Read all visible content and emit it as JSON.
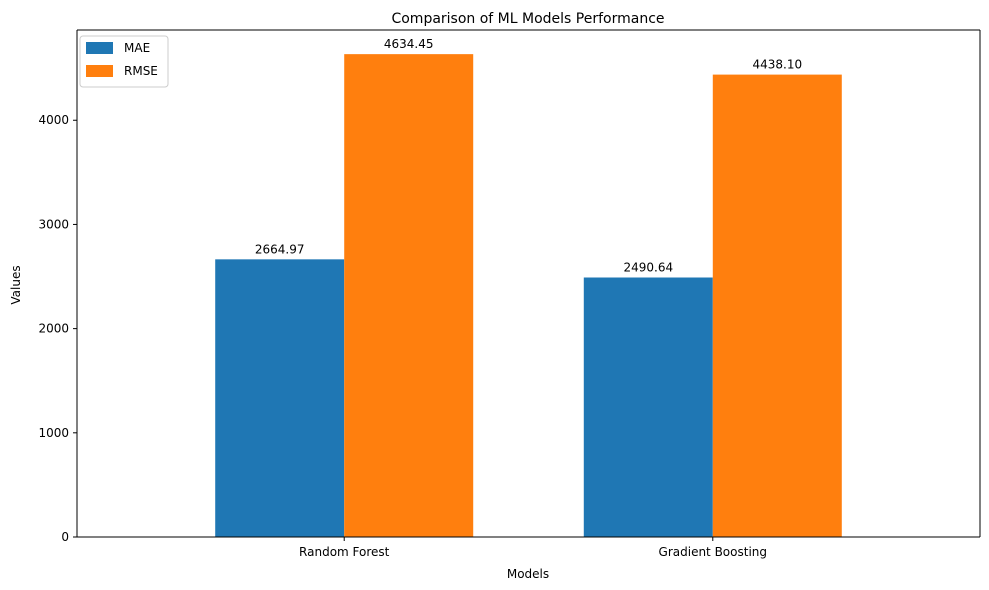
{
  "chart_data": {
    "type": "bar",
    "title": "Comparison of ML Models Performance",
    "xlabel": "Models",
    "ylabel": "Values",
    "categories": [
      "Random Forest",
      "Gradient Boosting"
    ],
    "series": [
      {
        "name": "MAE",
        "color": "#1f77b4",
        "values": [
          2664.97,
          2490.64
        ],
        "labels": [
          "2664.97",
          "2490.64"
        ]
      },
      {
        "name": "RMSE",
        "color": "#ff7f0e",
        "values": [
          4634.45,
          4438.1
        ],
        "labels": [
          "4634.45",
          "4438.10"
        ]
      }
    ],
    "yticks": [
      0,
      1000,
      2000,
      3000,
      4000
    ],
    "ytick_labels": [
      "0",
      "1000",
      "2000",
      "3000",
      "4000"
    ],
    "ylim": [
      0,
      4866.17
    ],
    "grid": false,
    "legend_position": "top-left"
  }
}
